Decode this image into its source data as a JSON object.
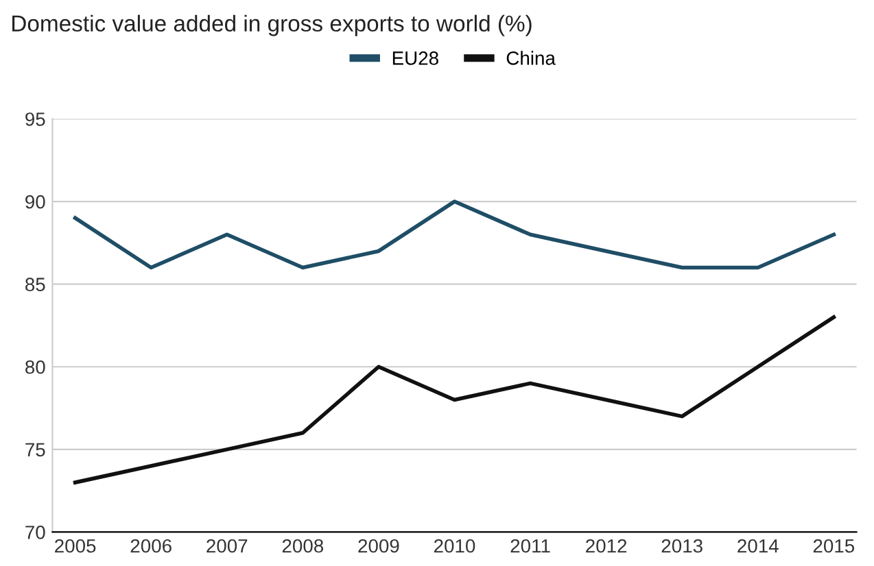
{
  "chart_data": {
    "type": "line",
    "title": "Domestic value added in gross exports to world (%)",
    "categories": [
      "2005",
      "2006",
      "2007",
      "2008",
      "2009",
      "2010",
      "2011",
      "2012",
      "2013",
      "2014",
      "2015"
    ],
    "series": [
      {
        "name": "EU28",
        "color": "#1f4e66",
        "values": [
          89,
          86,
          88,
          86,
          87,
          90,
          88,
          87,
          86,
          86,
          88
        ]
      },
      {
        "name": "China",
        "color": "#111111",
        "values": [
          73,
          74,
          75,
          76,
          80,
          78,
          79,
          78,
          77,
          80,
          83
        ]
      }
    ],
    "ylim": [
      70,
      95
    ],
    "yticks": [
      70,
      75,
      80,
      85,
      90,
      95
    ],
    "grid": "y",
    "legend": "top",
    "marker": "none",
    "line_style": "solid"
  }
}
